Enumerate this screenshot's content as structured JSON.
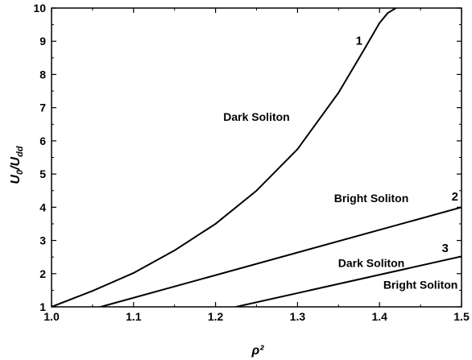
{
  "chart_data": {
    "type": "line",
    "xlabel": "ρ²",
    "ylabel_main": "U",
    "ylabel_main_sub": "0",
    "ylabel_sep": "/",
    "ylabel_denom": "U",
    "ylabel_denom_sub": "dd",
    "xlim": [
      1.0,
      1.5
    ],
    "ylim": [
      1,
      10
    ],
    "grid": false,
    "legend": "none",
    "x_ticks": [
      {
        "value": 1.0,
        "label": "1.0"
      },
      {
        "value": 1.1,
        "label": "1.1"
      },
      {
        "value": 1.2,
        "label": "1.2"
      },
      {
        "value": 1.3,
        "label": "1.3"
      },
      {
        "value": 1.4,
        "label": "1.4"
      },
      {
        "value": 1.5,
        "label": "1.5"
      }
    ],
    "y_ticks": [
      {
        "value": 1,
        "label": "1"
      },
      {
        "value": 2,
        "label": "2"
      },
      {
        "value": 3,
        "label": "3"
      },
      {
        "value": 4,
        "label": "4"
      },
      {
        "value": 5,
        "label": "5"
      },
      {
        "value": 6,
        "label": "6"
      },
      {
        "value": 7,
        "label": "7"
      },
      {
        "value": 8,
        "label": "8"
      },
      {
        "value": 9,
        "label": "9"
      },
      {
        "value": 10,
        "label": "10"
      }
    ],
    "series": [
      {
        "label": "1",
        "label_at": [
          1.375,
          8.9
        ],
        "x": [
          1.0,
          1.05,
          1.1,
          1.15,
          1.2,
          1.25,
          1.3,
          1.35,
          1.38,
          1.4,
          1.41,
          1.42
        ],
        "y": [
          1.0,
          1.48,
          2.02,
          2.7,
          3.5,
          4.5,
          5.75,
          7.45,
          8.7,
          9.55,
          9.85,
          10.0
        ]
      },
      {
        "label": "2",
        "label_at": [
          1.492,
          4.2
        ],
        "x": [
          1.06,
          1.5
        ],
        "y": [
          1.0,
          4.0
        ]
      },
      {
        "label": "3",
        "label_at": [
          1.48,
          2.65
        ],
        "x": [
          1.225,
          1.5
        ],
        "y": [
          1.0,
          2.52
        ]
      }
    ],
    "annotations": [
      {
        "text": "Dark Soliton",
        "x": 1.25,
        "y": 6.6
      },
      {
        "text": "Bright Soliton",
        "x": 1.39,
        "y": 4.15
      },
      {
        "text": "Dark Soliton",
        "x": 1.39,
        "y": 2.2
      },
      {
        "text": "Bright Soliton",
        "x": 1.45,
        "y": 1.55
      }
    ],
    "colors": {
      "line": "#000000",
      "background": "#ffffff"
    }
  }
}
